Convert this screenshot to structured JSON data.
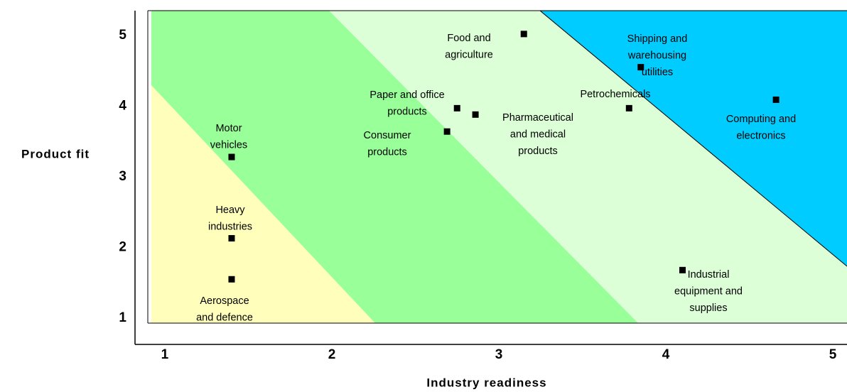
{
  "chart_data": {
    "type": "scatter",
    "xlabel": "Industry readiness",
    "ylabel": "Product fit",
    "x": [
      3.15,
      3.85,
      4.66,
      3.78,
      2.75,
      2.86,
      2.69,
      1.4,
      1.4,
      1.4,
      4.1
    ],
    "y": [
      5.02,
      4.55,
      4.09,
      3.97,
      3.97,
      3.88,
      3.64,
      3.28,
      2.13,
      1.55,
      1.68
    ],
    "labels": [
      [
        "Food and",
        "agriculture"
      ],
      [
        "Shipping and",
        "warehousing",
        "utilities"
      ],
      [
        "Computing and",
        "electronics"
      ],
      [
        "Petrochemicals"
      ],
      [
        "Paper and office",
        "products"
      ],
      [
        "Pharmaceutical",
        "and medical",
        "products"
      ],
      [
        "Consumer",
        "products"
      ],
      [
        "Motor",
        "vehicles"
      ],
      [
        "Heavy",
        "industries"
      ],
      [
        "Aerospace",
        "and  defence"
      ],
      [
        "Industrial",
        "equipment and",
        "supplies"
      ]
    ],
    "color": "#000000",
    "xlim": [
      0.898,
      5.085
    ],
    "ylim": [
      0.93,
      5.35
    ],
    "xticks": [
      1,
      2,
      3,
      4,
      5
    ],
    "yticks": [
      1,
      2,
      3,
      4,
      5
    ]
  }
}
